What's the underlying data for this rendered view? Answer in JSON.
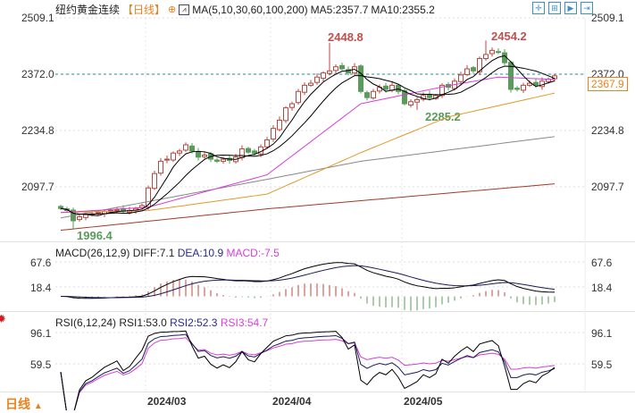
{
  "header": {
    "title": "纽约黄金连续",
    "period": "【日线】",
    "ma_label": "MA(5,10,30,60,100,200)",
    "ma5": "MA5:2357.7",
    "ma10": "MA10:2355.2"
  },
  "toolbar": [
    "crosshair-icon",
    "zoom-in-icon",
    "play-icon",
    "exit-icon"
  ],
  "bottom": {
    "period": "日线",
    "arrow": "▲"
  },
  "colors": {
    "up": "#b8473f",
    "down": "#5a9a5a",
    "ma5": "#000000",
    "ma10": "#000000",
    "ma30": "#d63fd6",
    "ma60": "#e09a2a",
    "ma100": "#888888",
    "ma200": "#a03a2a",
    "last": "#e8821e",
    "ref": "#2a8a9a"
  },
  "chart_data": {
    "type": "candlestick",
    "price_axis": {
      "ticks": [
        "2509.1",
        "2372.0",
        "2234.8",
        "2097.7"
      ],
      "ref_line": "2372.0",
      "last_price": "2367.9",
      "range": [
        2097.7,
        2509.1
      ]
    },
    "annotations": {
      "high1": "2448.8",
      "high2": "2454.2",
      "low1": "2285.2",
      "low0": "1996.4"
    },
    "x_ticks": [
      {
        "label": "2024/03",
        "index": 14
      },
      {
        "label": "2024/04",
        "index": 34
      },
      {
        "label": "2024/05",
        "index": 55
      }
    ],
    "close": [
      2045,
      2040,
      2015,
      2025,
      2030,
      2032,
      2035,
      2038,
      2040,
      2042,
      2038,
      2040,
      2045,
      2052,
      2095,
      2130,
      2160,
      2165,
      2180,
      2185,
      2200,
      2185,
      2170,
      2175,
      2165,
      2160,
      2165,
      2162,
      2170,
      2190,
      2182,
      2180,
      2195,
      2212,
      2240,
      2260,
      2290,
      2300,
      2330,
      2345,
      2350,
      2365,
      2375,
      2380,
      2390,
      2385,
      2375,
      2390,
      2330,
      2315,
      2330,
      2340,
      2335,
      2345,
      2330,
      2300,
      2305,
      2310,
      2320,
      2315,
      2320,
      2345,
      2340,
      2355,
      2370,
      2385,
      2380,
      2410,
      2420,
      2430,
      2425,
      2400,
      2335,
      2335,
      2345,
      2350,
      2345,
      2355,
      2360,
      2368
    ],
    "special_highs": {
      "43": 2448.8,
      "68": 2454.2
    },
    "special_lows": {
      "2": 1996.4,
      "57": 2285.2
    },
    "ma_long": {
      "MA30": [
        [
          0,
          2035
        ],
        [
          14,
          2048
        ],
        [
          33,
          2127
        ],
        [
          48,
          2300
        ],
        [
          62,
          2344
        ],
        [
          70,
          2365
        ],
        [
          79,
          2359
        ]
      ],
      "MA60": [
        [
          0,
          2035
        ],
        [
          14,
          2040
        ],
        [
          33,
          2080
        ],
        [
          48,
          2181
        ],
        [
          62,
          2268
        ],
        [
          79,
          2326
        ]
      ],
      "MA100": [
        [
          0,
          2022
        ],
        [
          33,
          2116
        ],
        [
          48,
          2160
        ],
        [
          79,
          2220
        ]
      ],
      "MA200": [
        [
          0,
          1992
        ],
        [
          33,
          2044
        ],
        [
          79,
          2105
        ]
      ]
    },
    "macd": {
      "label": "MACD(26,12,9)",
      "diff": "DIFF:7.1",
      "dea": "DEA:10.9",
      "macd": "MACD:-7.5",
      "ticks": [
        "67.6",
        "18.4"
      ]
    },
    "rsi": {
      "label": "RSI(6,12,24)",
      "rsi1": "RSI1:53.0",
      "rsi2": "RSI2:52.3",
      "rsi3": "RSI3:54.7",
      "ticks": [
        "96.1",
        "59.5"
      ]
    }
  }
}
